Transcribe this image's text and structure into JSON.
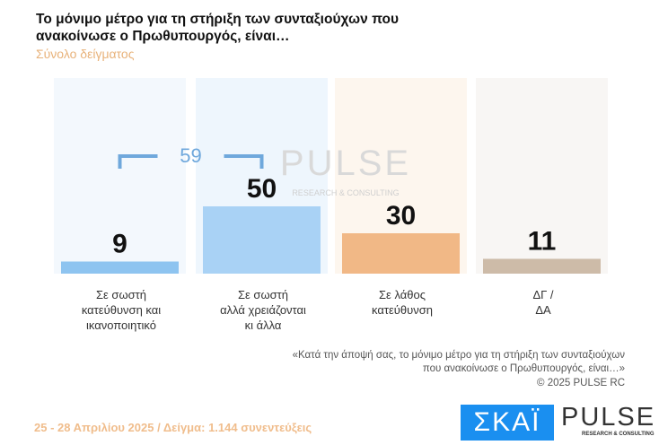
{
  "header": {
    "title": "Το μόνιμο μέτρο  για τη στήριξη των συνταξιούχων που ανακοίνωσε ο Πρωθυπουργός, είναι…",
    "subtitle": "Σύνολο δείγματος"
  },
  "chart_data": {
    "type": "bar",
    "categories": [
      "Σε σωστή\nκατεύθυνση και\nικανοποιητικό",
      "Σε σωστή\nαλλά χρειάζονται\nκι άλλα",
      "Σε λάθος\nκατεύθυνση",
      "ΔΓ /\nΔΑ"
    ],
    "values": [
      9,
      50,
      30,
      11
    ],
    "colors": [
      "#8ec4f0",
      "#a9d2f5",
      "#f1b886",
      "#cdbba8"
    ],
    "background_colors": [
      "#f3f8fd",
      "#eef6fd",
      "#fdf6ee",
      "#f8f6f4"
    ],
    "bracket": {
      "label": "59",
      "spans": [
        0,
        1
      ],
      "color": "#6fa8dc"
    },
    "ylim": [
      0,
      100
    ]
  },
  "watermark": {
    "name": "PULSE",
    "tagline": "RESEARCH & CONSULTING"
  },
  "note": {
    "question": "«Κατά την άποψή σας, το μόνιμο μέτρο  για τη στήριξη των συνταξιούχων\nπου ανακοίνωσε ο Πρωθυπουργός, είναι…»",
    "copyright": "©  2025  PULSE RC"
  },
  "footer": {
    "text": "25 - 28 Απριλίου 2025  /  Δείγμα:  1.144 συνεντεύξεις"
  },
  "logos": {
    "skai": "ΣΚΑΪ",
    "pulse": "PULSE",
    "pulse_tagline": "RESEARCH & CONSULTING"
  }
}
